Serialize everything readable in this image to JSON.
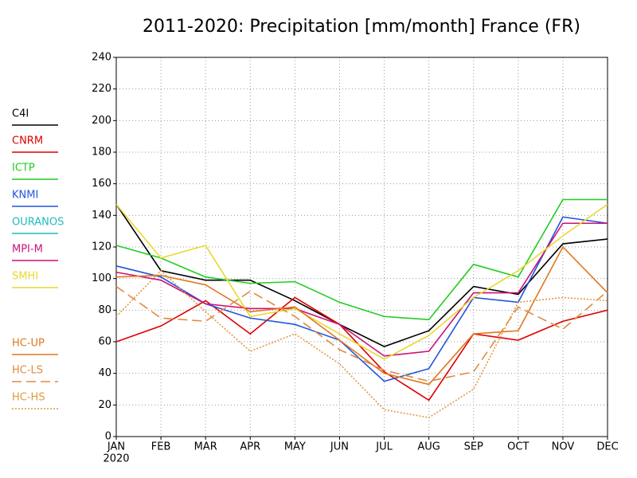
{
  "chart_data": {
    "type": "line",
    "title": "2011-2020: Precipitation [mm/month] France (FR)",
    "categories": [
      "JAN",
      "FEB",
      "MAR",
      "APR",
      "MAY",
      "JUN",
      "JUL",
      "AUG",
      "SEP",
      "OCT",
      "NOV",
      "DEC"
    ],
    "x_sublabel": "2020",
    "ylim": [
      0,
      240
    ],
    "yticks": [
      0,
      20,
      40,
      60,
      80,
      100,
      120,
      140,
      160,
      180,
      200,
      220,
      240
    ],
    "grid": true,
    "legend": "left",
    "series": [
      {
        "name": "C4I",
        "color": "#000000",
        "style": "solid",
        "values": [
          147,
          105,
          99,
          99,
          86,
          71,
          57,
          67,
          95,
          90,
          122,
          125
        ]
      },
      {
        "name": "CNRM",
        "color": "#dd0000",
        "style": "solid",
        "values": [
          60,
          70,
          86,
          65,
          88,
          71,
          41,
          23,
          65,
          61,
          73,
          80
        ]
      },
      {
        "name": "ICTP",
        "color": "#22cc22",
        "style": "solid",
        "values": [
          121,
          113,
          101,
          97,
          98,
          85,
          76,
          74,
          109,
          101,
          150,
          150
        ]
      },
      {
        "name": "KNMI",
        "color": "#2255dd",
        "style": "solid",
        "values": [
          108,
          101,
          84,
          75,
          71,
          61,
          35,
          43,
          88,
          85,
          139,
          135
        ]
      },
      {
        "name": "OURANOS",
        "color": "#22bbbb",
        "style": "solid",
        "values": [
          null,
          null,
          null,
          null,
          null,
          null,
          null,
          null,
          null,
          null,
          null,
          null
        ]
      },
      {
        "name": "MPI-M",
        "color": "#cc1177",
        "style": "solid",
        "values": [
          104,
          99,
          84,
          81,
          81,
          71,
          51,
          54,
          91,
          91,
          135,
          135
        ]
      },
      {
        "name": "SMHI",
        "color": "#e8d830",
        "style": "solid",
        "values": [
          147,
          113,
          121,
          76,
          81,
          65,
          49,
          64,
          88,
          105,
          127,
          147
        ]
      },
      {
        "name": "HC-UP",
        "color": "#e07820",
        "style": "solid",
        "values": [
          101,
          102,
          96,
          79,
          82,
          61,
          40,
          33,
          65,
          67,
          120,
          91
        ]
      },
      {
        "name": "HC-LS",
        "color": "#e08a40",
        "style": "dashed",
        "values": [
          95,
          75,
          73,
          92,
          76,
          55,
          42,
          35,
          41,
          82,
          68,
          92
        ]
      },
      {
        "name": "HC-HS",
        "color": "#e09a40",
        "style": "dotted",
        "values": [
          76,
          105,
          79,
          54,
          65,
          46,
          17,
          12,
          30,
          85,
          88,
          86
        ]
      }
    ]
  }
}
